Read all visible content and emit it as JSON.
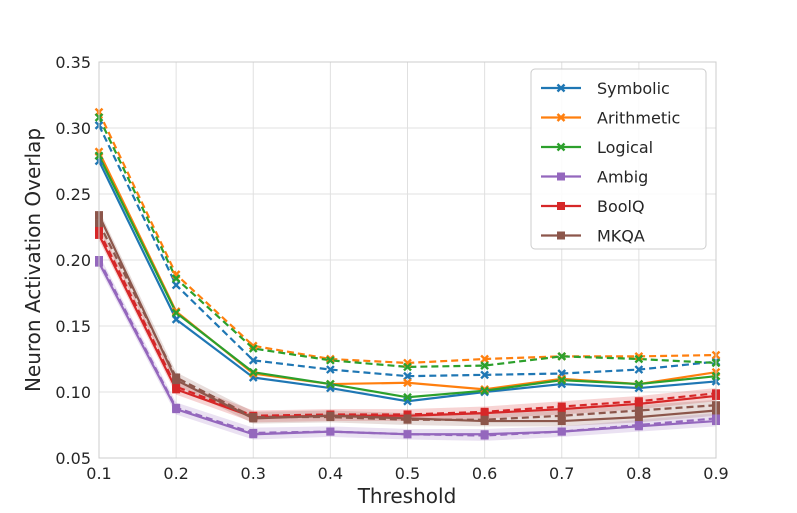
{
  "chart_data": {
    "type": "line",
    "title": "",
    "xlabel": "Threshold",
    "ylabel": "Neuron Activation Overlap",
    "x": [
      0.1,
      0.2,
      0.3,
      0.4,
      0.5,
      0.6,
      0.7,
      0.8,
      0.9
    ],
    "xlim": [
      0.1,
      0.9
    ],
    "ylim": [
      0.05,
      0.35
    ],
    "xticks": [
      "0.1",
      "0.2",
      "0.3",
      "0.4",
      "0.5",
      "0.6",
      "0.7",
      "0.8",
      "0.9"
    ],
    "yticks": [
      "0.05",
      "0.10",
      "0.15",
      "0.20",
      "0.25",
      "0.30",
      "0.35"
    ],
    "grid": true,
    "legend_position": "top-right",
    "series": [
      {
        "name": "Symbolic",
        "color": "#1f77b4",
        "marker": "x",
        "values": [
          0.275,
          0.155,
          0.111,
          0.103,
          0.093,
          0.1,
          0.106,
          0.103,
          0.108
        ],
        "dashed_values": [
          0.302,
          0.181,
          0.124,
          0.117,
          0.112,
          0.113,
          0.114,
          0.117,
          0.123
        ]
      },
      {
        "name": "Arithmetic",
        "color": "#ff7f0e",
        "marker": "x",
        "values": [
          0.282,
          0.161,
          0.114,
          0.106,
          0.107,
          0.102,
          0.11,
          0.106,
          0.115
        ],
        "dashed_values": [
          0.312,
          0.189,
          0.135,
          0.125,
          0.122,
          0.125,
          0.127,
          0.127,
          0.128
        ]
      },
      {
        "name": "Logical",
        "color": "#2ca02c",
        "marker": "x",
        "values": [
          0.279,
          0.16,
          0.115,
          0.106,
          0.096,
          0.101,
          0.109,
          0.106,
          0.112
        ],
        "dashed_values": [
          0.308,
          0.186,
          0.133,
          0.124,
          0.119,
          0.12,
          0.127,
          0.125,
          0.122
        ]
      },
      {
        "name": "Ambig",
        "color": "#9467bd",
        "marker": "square",
        "values": [
          0.198,
          0.087,
          0.068,
          0.07,
          0.068,
          0.068,
          0.07,
          0.074,
          0.078
        ],
        "dashed_values": [
          0.2,
          0.088,
          0.069,
          0.07,
          0.068,
          0.067,
          0.07,
          0.075,
          0.08
        ]
      },
      {
        "name": "BoolQ",
        "color": "#d62728",
        "marker": "square",
        "values": [
          0.219,
          0.102,
          0.081,
          0.082,
          0.082,
          0.084,
          0.087,
          0.091,
          0.097
        ],
        "dashed_values": [
          0.222,
          0.104,
          0.082,
          0.083,
          0.083,
          0.085,
          0.089,
          0.093,
          0.099
        ]
      },
      {
        "name": "MKQA",
        "color": "#8c564b",
        "marker": "square",
        "values": [
          0.234,
          0.109,
          0.08,
          0.082,
          0.08,
          0.078,
          0.078,
          0.081,
          0.086
        ],
        "dashed_values": [
          0.228,
          0.111,
          0.081,
          0.081,
          0.079,
          0.079,
          0.082,
          0.086,
          0.09
        ]
      }
    ]
  }
}
